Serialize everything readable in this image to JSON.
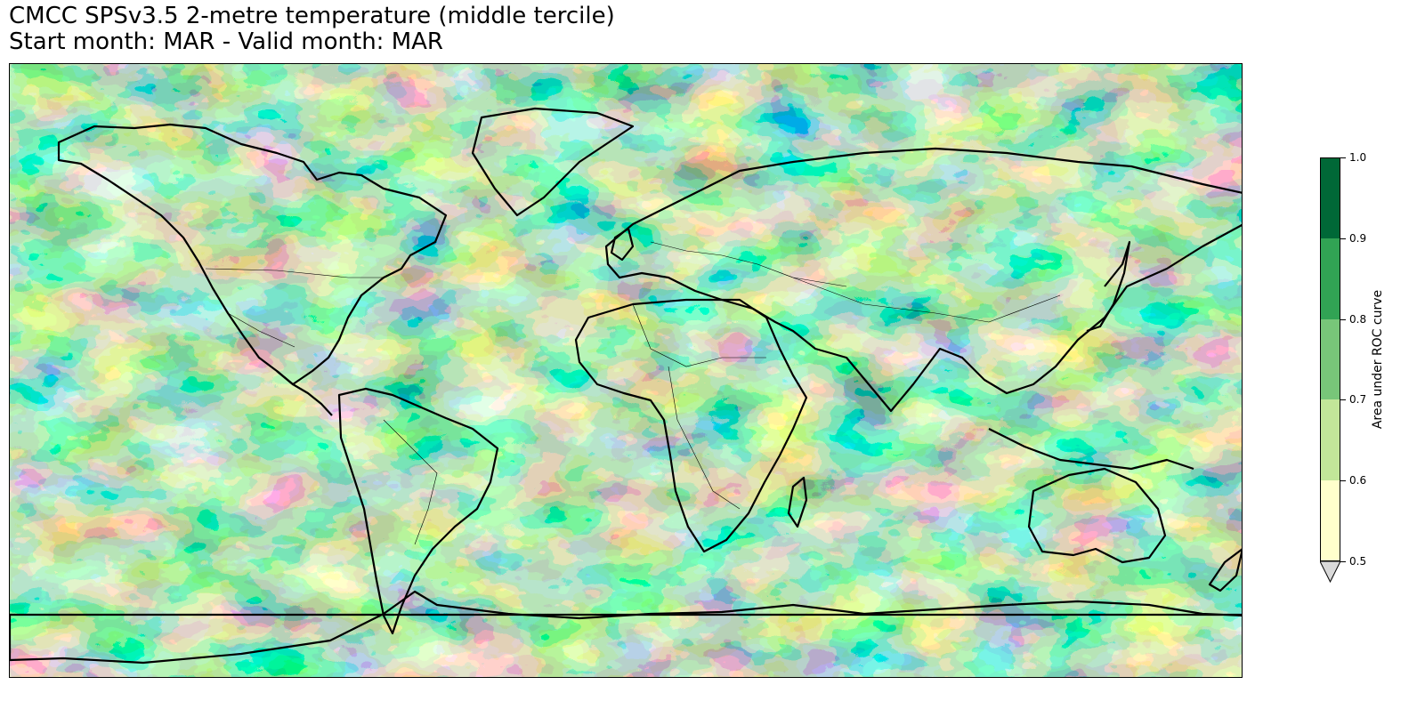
{
  "title": {
    "line1": "CMCC SPSv3.5 2-metre temperature (middle tercile)",
    "line2": "Start month: MAR - Valid month: MAR"
  },
  "colorbar": {
    "label": "Area under ROC curve",
    "ticks": [
      "0.5",
      "0.6",
      "0.7",
      "0.8",
      "0.9",
      "1.0"
    ],
    "levels": [
      0.5,
      0.6,
      0.7,
      0.8,
      0.9,
      1.0
    ],
    "colors": [
      "#ffffcc",
      "#c2e699",
      "#78c679",
      "#31a354",
      "#006837"
    ],
    "extend_below_color": "#d9d9d9",
    "extend": "min"
  },
  "map": {
    "projection": "Plate Carree",
    "field": "Area under ROC curve",
    "colormap": "YlGn",
    "value_range": [
      0.5,
      1.0
    ]
  }
}
